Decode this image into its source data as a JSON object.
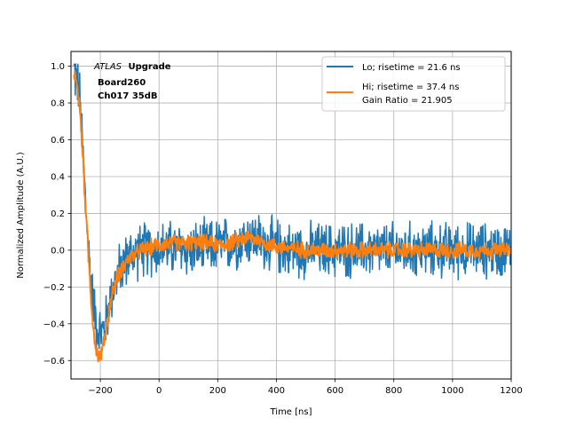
{
  "chart_data": {
    "type": "line",
    "xlabel": "Time [ns]",
    "ylabel": "Normalized Amplitude (A.U.)",
    "xlim": [
      -300,
      1200
    ],
    "ylim": [
      -0.7,
      1.08
    ],
    "xticks": [
      -200,
      0,
      200,
      400,
      600,
      800,
      1000,
      1200
    ],
    "yticks": [
      -0.6,
      -0.4,
      -0.2,
      0.0,
      0.2,
      0.4,
      0.6,
      0.8,
      1.0
    ],
    "xtick_labels": [
      "−200",
      "0",
      "200",
      "400",
      "600",
      "800",
      "1000",
      "1200"
    ],
    "ytick_labels": [
      "−0.6",
      "−0.4",
      "−0.2",
      "0.0",
      "0.2",
      "0.4",
      "0.6",
      "0.8",
      "1.0"
    ],
    "grid": true,
    "legend_position": "top-right",
    "annotation": {
      "atlas": "ATLAS",
      "upgrade": "Upgrade",
      "board": "Board260",
      "channel": "Ch017 35dB"
    },
    "series": [
      {
        "name": "Lo; risetime = 21.6 ns",
        "color": "#1f77b4",
        "noise_amplitude": 0.12,
        "shape_x": [
          -290,
          -280,
          -270,
          -260,
          -250,
          -240,
          -230,
          -220,
          -210,
          -200,
          -190,
          -180,
          -170,
          -160,
          -140,
          -120,
          -100,
          -80,
          -60,
          -40,
          -20,
          0,
          50,
          100,
          150,
          200,
          250,
          280,
          300,
          330,
          360,
          400,
          450,
          500,
          600,
          700,
          800,
          900,
          1000,
          1100,
          1200
        ],
        "shape_y": [
          0.97,
          0.93,
          0.82,
          0.55,
          0.25,
          0.0,
          -0.2,
          -0.33,
          -0.42,
          -0.45,
          -0.44,
          -0.38,
          -0.3,
          -0.22,
          -0.13,
          -0.07,
          -0.03,
          -0.01,
          0.0,
          0.0,
          0.01,
          0.01,
          0.01,
          0.0,
          0.01,
          0.02,
          0.04,
          0.06,
          0.07,
          0.06,
          0.04,
          0.02,
          0.0,
          0.0,
          0.0,
          0.0,
          0.0,
          0.0,
          0.0,
          0.0,
          0.0
        ]
      },
      {
        "name": "Hi; risetime = 37.4 ns",
        "color": "#ff7f0e",
        "noise_amplitude": 0.035,
        "shape_x": [
          -290,
          -280,
          -270,
          -260,
          -250,
          -240,
          -230,
          -220,
          -210,
          -200,
          -190,
          -180,
          -170,
          -160,
          -140,
          -120,
          -100,
          -80,
          -60,
          -40,
          -20,
          0,
          50,
          100,
          150,
          200,
          250,
          280,
          300,
          330,
          360,
          400,
          450,
          500,
          600,
          700,
          800,
          900,
          1000,
          1100,
          1200
        ],
        "shape_y": [
          0.98,
          0.9,
          0.78,
          0.52,
          0.22,
          -0.05,
          -0.3,
          -0.48,
          -0.57,
          -0.58,
          -0.52,
          -0.43,
          -0.33,
          -0.24,
          -0.14,
          -0.08,
          -0.04,
          -0.02,
          0.0,
          0.01,
          0.02,
          0.03,
          0.04,
          0.04,
          0.04,
          0.03,
          0.04,
          0.06,
          0.07,
          0.06,
          0.04,
          0.02,
          0.01,
          0.0,
          0.0,
          0.0,
          0.0,
          0.0,
          0.0,
          0.0,
          0.0
        ]
      }
    ],
    "legend": {
      "line1": "Lo; risetime = 21.6 ns",
      "line2": "Hi; risetime = 37.4 ns",
      "line3": " Gain Ratio = 21.905"
    }
  }
}
